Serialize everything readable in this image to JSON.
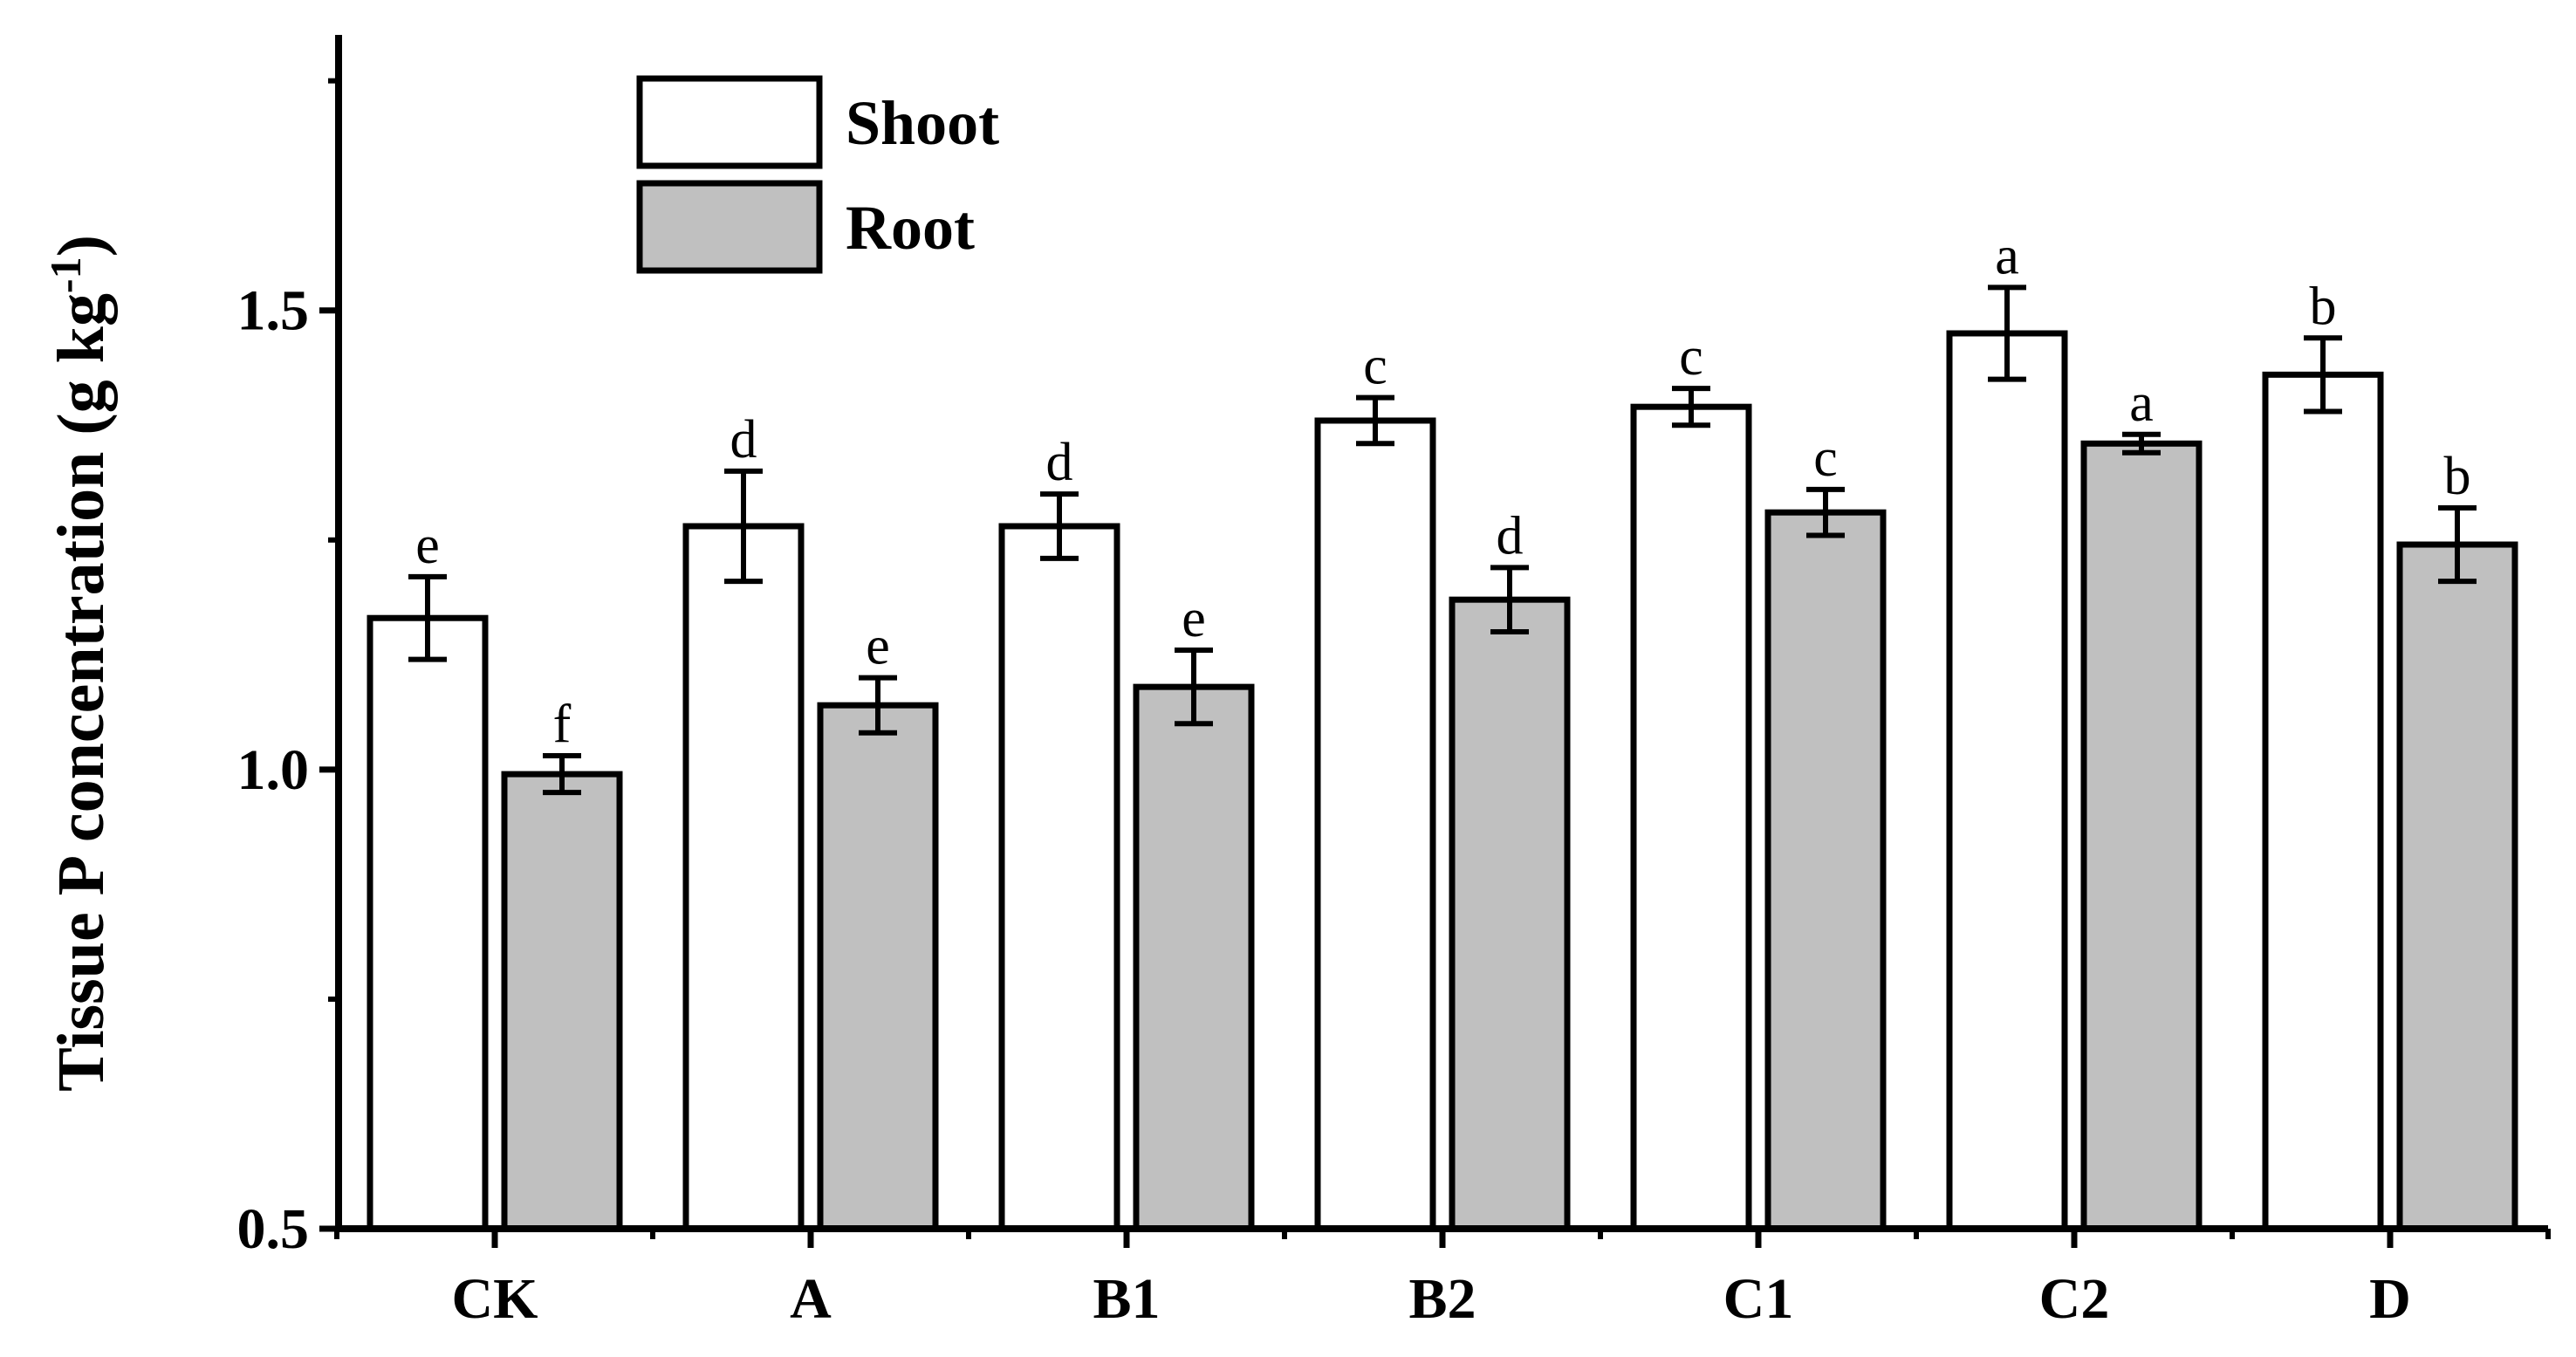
{
  "chart_data": {
    "type": "bar",
    "title": "",
    "xlabel": "",
    "ylabel": "Tissue P concentration (g kg",
    "ylabel_superscript": "-1",
    "ylabel_close": ")",
    "categories": [
      "CK",
      "A",
      "B1",
      "B2",
      "C1",
      "C2",
      "D"
    ],
    "ylim": [
      0.5,
      1.8
    ],
    "yticks": [
      0.5,
      1.0,
      1.5
    ],
    "ytick_labels": [
      "0.5",
      "1.0",
      "1.5"
    ],
    "legend_position": "top-left",
    "grid": false,
    "series": [
      {
        "name": "Shoot",
        "color": "#ffffff",
        "values": [
          1.165,
          1.265,
          1.265,
          1.38,
          1.395,
          1.475,
          1.43
        ],
        "errors": [
          0.045,
          0.06,
          0.035,
          0.025,
          0.02,
          0.05,
          0.04
        ],
        "significance": [
          "e",
          "d",
          "d",
          "c",
          "c",
          "a",
          "b"
        ]
      },
      {
        "name": "Root",
        "color": "#c0c0c0",
        "values": [
          0.995,
          1.07,
          1.09,
          1.185,
          1.28,
          1.355,
          1.245
        ],
        "errors": [
          0.02,
          0.03,
          0.04,
          0.035,
          0.025,
          0.01,
          0.04
        ],
        "significance": [
          "f",
          "e",
          "e",
          "d",
          "c",
          "a",
          "b"
        ]
      }
    ]
  }
}
